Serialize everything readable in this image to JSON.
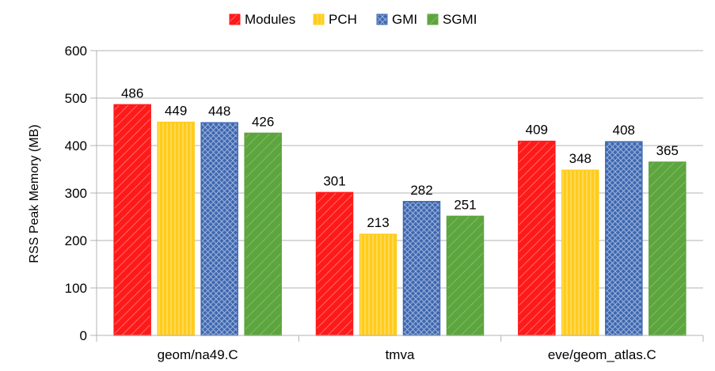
{
  "chart_data": {
    "type": "bar",
    "title": "",
    "xlabel": "",
    "ylabel": "RSS Peak Memory (MB)",
    "ylim": [
      0,
      600
    ],
    "yticks": [
      0,
      100,
      200,
      300,
      400,
      500,
      600
    ],
    "grid": true,
    "legend_position": "top-center",
    "categories": [
      "geom/na49.C",
      "tmva",
      "eve/geom_atlas.C"
    ],
    "series": [
      {
        "name": "Modules",
        "values": [
          486,
          301,
          409
        ],
        "color": "#ff1a1a",
        "pattern": "diagonal-down"
      },
      {
        "name": "PCH",
        "values": [
          449,
          213,
          348
        ],
        "color": "#ffcc1a",
        "pattern": "vertical"
      },
      {
        "name": "GMI",
        "values": [
          448,
          282,
          408
        ],
        "color": "#3e68b0",
        "pattern": "crosshatch"
      },
      {
        "name": "SGMI",
        "values": [
          426,
          251,
          365
        ],
        "color": "#5da53f",
        "pattern": "diagonal-down"
      }
    ]
  }
}
